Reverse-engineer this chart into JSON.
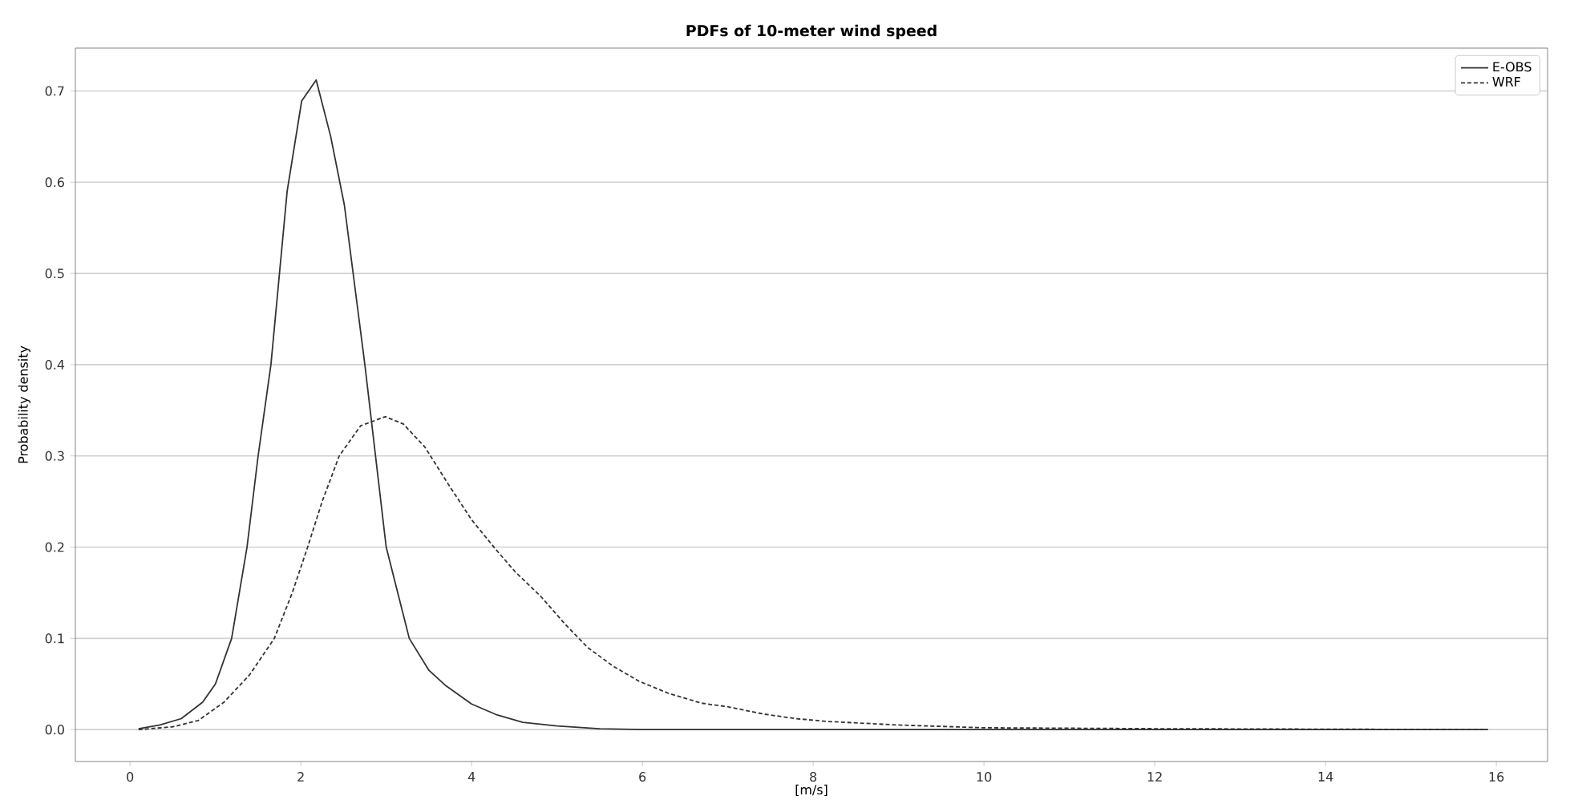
{
  "chart_data": {
    "type": "line",
    "title": "PDFs of 10-meter wind speed",
    "xlabel": "[m/s]",
    "ylabel": "Probability density",
    "xlim": [
      -0.64,
      16.6
    ],
    "ylim": [
      -0.035,
      0.747
    ],
    "xticks": [
      0,
      2,
      4,
      6,
      8,
      10,
      12,
      14,
      16
    ],
    "yticks": [
      {
        "value": 0,
        "label": "0.0"
      },
      0.1,
      0.2,
      0.3,
      0.4,
      0.5,
      0.6,
      0.7
    ],
    "grid": "y",
    "legend": "top right",
    "series": [
      {
        "name": "E-OBS",
        "color": "#333333",
        "line_style": "solid",
        "x": [
          0.1,
          0.35,
          0.6,
          0.85,
          1.0,
          1.19,
          1.37,
          1.5,
          1.65,
          1.84,
          2.01,
          2.18,
          2.35,
          2.51,
          2.75,
          3.0,
          3.27,
          3.5,
          3.7,
          4.0,
          4.3,
          4.6,
          5.0,
          5.5,
          6.0,
          8.0,
          10.0,
          12.0,
          15.9
        ],
        "values": [
          0.001,
          0.005,
          0.012,
          0.03,
          0.05,
          0.1,
          0.2,
          0.3,
          0.4,
          0.59,
          0.689,
          0.712,
          0.65,
          0.575,
          0.4,
          0.2,
          0.1,
          0.065,
          0.048,
          0.028,
          0.016,
          0.008,
          0.004,
          0.001,
          0,
          0,
          0,
          0,
          0
        ]
      },
      {
        "name": "WRF",
        "color": "#333333",
        "line_style": "dashed",
        "x": [
          0.1,
          0.5,
          0.8,
          1.1,
          1.4,
          1.69,
          1.9,
          2.08,
          2.25,
          2.45,
          2.7,
          2.99,
          3.2,
          3.45,
          3.72,
          4.0,
          4.27,
          4.51,
          4.81,
          5.1,
          5.36,
          5.65,
          5.96,
          6.3,
          6.69,
          7.0,
          7.42,
          7.8,
          8.15,
          9.0,
          10.0,
          12.0,
          15.9
        ],
        "values": [
          0,
          0.003,
          0.01,
          0.03,
          0.06,
          0.1,
          0.15,
          0.2,
          0.25,
          0.3,
          0.333,
          0.343,
          0.335,
          0.31,
          0.27,
          0.23,
          0.199,
          0.173,
          0.146,
          0.115,
          0.09,
          0.07,
          0.053,
          0.04,
          0.029,
          0.025,
          0.017,
          0.012,
          0.009,
          0.005,
          0.002,
          0.001,
          0
        ]
      }
    ]
  }
}
